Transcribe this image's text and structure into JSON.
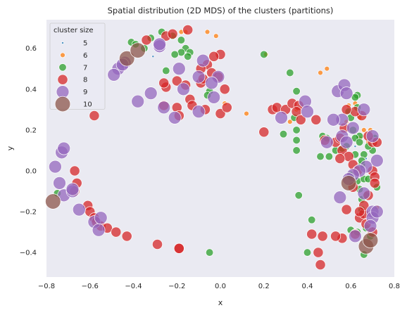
{
  "chart_data": {
    "type": "scatter",
    "title": "Spatial distribution (2D MDS) of the clusters (partitions)",
    "xlabel": "x",
    "ylabel": "y",
    "xlim": [
      -0.8,
      0.8
    ],
    "ylim": [
      -0.52,
      0.74
    ],
    "grid": false,
    "xticks": [
      "−0.8",
      "−0.6",
      "−0.4",
      "−0.2",
      "0.0",
      "0.2",
      "0.4",
      "0.6",
      "0.8"
    ],
    "xtick_values": [
      -0.8,
      -0.6,
      -0.4,
      -0.2,
      0.0,
      0.2,
      0.4,
      0.6,
      0.8
    ],
    "yticks": [
      "−0.4",
      "−0.2",
      "0.0",
      "0.2",
      "0.4",
      "0.6"
    ],
    "ytick_values": [
      -0.4,
      -0.2,
      0.0,
      0.2,
      0.4,
      0.6
    ],
    "legend": {
      "title": "cluster size",
      "placement": "top-left",
      "entries": [
        {
          "label": "5",
          "size": 5,
          "color": "#1f77b4"
        },
        {
          "label": "6",
          "size": 6,
          "color": "#ff7f0e"
        },
        {
          "label": "7",
          "size": 7,
          "color": "#2ca02c"
        },
        {
          "label": "8",
          "size": 8,
          "color": "#d62728"
        },
        {
          "label": "9",
          "size": 9,
          "color": "#9467bd"
        },
        {
          "label": "10",
          "size": 10,
          "color": "#8c564b"
        }
      ]
    },
    "series": [
      {
        "name": "5",
        "color": "#1f77b4",
        "points": [
          [
            -0.31,
            0.56
          ],
          [
            0.7,
            -0.28
          ],
          [
            0.62,
            0.12
          ],
          [
            0.67,
            0.06
          ]
        ]
      },
      {
        "name": "6",
        "color": "#ff7f0e",
        "points": [
          [
            -0.16,
            0.68
          ],
          [
            -0.18,
            0.68
          ],
          [
            -0.06,
            0.68
          ],
          [
            -0.02,
            0.66
          ],
          [
            0.21,
            0.57
          ],
          [
            0.46,
            0.48
          ],
          [
            0.49,
            0.5
          ],
          [
            0.12,
            0.28
          ],
          [
            0.35,
            0.3
          ],
          [
            0.32,
            0.24
          ],
          [
            0.59,
            0.32
          ],
          [
            0.62,
            0.33
          ],
          [
            0.64,
            0.26
          ],
          [
            0.66,
            0.2
          ],
          [
            0.69,
            0.2
          ],
          [
            0.58,
            0.24
          ],
          [
            0.02,
            0.33
          ],
          [
            0.72,
            -0.18
          ],
          [
            0.64,
            0.16
          ],
          [
            0.68,
            0.14
          ]
        ]
      },
      {
        "name": "7",
        "color": "#2ca02c",
        "points": [
          [
            -0.32,
            0.65
          ],
          [
            -0.27,
            0.68
          ],
          [
            -0.22,
            0.66
          ],
          [
            -0.18,
            0.64
          ],
          [
            -0.16,
            0.6
          ],
          [
            -0.18,
            0.58
          ],
          [
            -0.35,
            0.6
          ],
          [
            -0.41,
            0.63
          ],
          [
            -0.39,
            0.62
          ],
          [
            -0.25,
            0.49
          ],
          [
            -0.14,
            0.58
          ],
          [
            -0.15,
            0.56
          ],
          [
            -0.05,
            0.39
          ],
          [
            -0.06,
            0.37
          ],
          [
            -0.21,
            0.57
          ],
          [
            0.2,
            0.57
          ],
          [
            0.32,
            0.48
          ],
          [
            0.35,
            0.39
          ],
          [
            0.29,
            0.18
          ],
          [
            0.34,
            0.26
          ],
          [
            0.35,
            0.2
          ],
          [
            0.35,
            0.15
          ],
          [
            0.35,
            0.1
          ],
          [
            0.36,
            -0.12
          ],
          [
            0.42,
            -0.24
          ],
          [
            0.4,
            -0.4
          ],
          [
            -0.05,
            -0.4
          ],
          [
            0.46,
            0.07
          ],
          [
            0.5,
            0.07
          ],
          [
            0.53,
            0.1
          ],
          [
            0.56,
            0.11
          ],
          [
            0.58,
            0.12
          ],
          [
            0.59,
            0.29
          ],
          [
            0.63,
            0.37
          ],
          [
            0.63,
            0.31
          ],
          [
            0.61,
            0.2
          ],
          [
            0.64,
            0.17
          ],
          [
            0.62,
            0.08
          ],
          [
            0.6,
            -0.02
          ],
          [
            0.63,
            -0.05
          ],
          [
            0.64,
            -0.09
          ],
          [
            0.66,
            -0.04
          ],
          [
            0.68,
            -0.04
          ],
          [
            0.65,
            -0.14
          ],
          [
            0.67,
            -0.12
          ],
          [
            0.6,
            -0.29
          ],
          [
            0.63,
            -0.3
          ],
          [
            0.65,
            -0.19
          ],
          [
            0.67,
            -0.28
          ],
          [
            0.66,
            -0.41
          ],
          [
            0.69,
            -0.32
          ],
          [
            0.71,
            0.16
          ],
          [
            0.7,
            0.1
          ],
          [
            0.65,
            0.03
          ],
          [
            0.66,
            0.08
          ],
          [
            0.72,
            -0.08
          ],
          [
            -0.75,
            -0.11
          ],
          [
            0.47,
            0.17
          ],
          [
            0.62,
            0.16
          ],
          [
            0.64,
            0.14
          ],
          [
            0.68,
            0.12
          ],
          [
            0.6,
            0.26
          ],
          [
            0.62,
            0.36
          ],
          [
            0.65,
            0.05
          ],
          [
            0.49,
            0.16
          ]
        ]
      },
      {
        "name": "8",
        "color": "#d62728",
        "points": [
          [
            -0.34,
            0.64
          ],
          [
            -0.25,
            0.66
          ],
          [
            -0.22,
            0.67
          ],
          [
            -0.15,
            0.69
          ],
          [
            -0.25,
            0.41
          ],
          [
            -0.26,
            0.43
          ],
          [
            -0.2,
            0.44
          ],
          [
            -0.16,
            0.42
          ],
          [
            -0.14,
            0.35
          ],
          [
            -0.09,
            0.43
          ],
          [
            -0.08,
            0.45
          ],
          [
            -0.06,
            0.52
          ],
          [
            -0.04,
            0.48
          ],
          [
            -0.01,
            0.46
          ],
          [
            0.0,
            0.57
          ],
          [
            0.02,
            0.4
          ],
          [
            -0.03,
            0.56
          ],
          [
            -0.09,
            0.5
          ],
          [
            -0.2,
            0.31
          ],
          [
            -0.19,
            0.27
          ],
          [
            -0.26,
            0.32
          ],
          [
            -0.13,
            0.32
          ],
          [
            -0.07,
            0.3
          ],
          [
            0.0,
            0.28
          ],
          [
            0.03,
            0.31
          ],
          [
            0.2,
            0.19
          ],
          [
            0.24,
            0.3
          ],
          [
            0.26,
            0.31
          ],
          [
            0.3,
            0.3
          ],
          [
            0.33,
            0.33
          ],
          [
            0.36,
            0.32
          ],
          [
            0.35,
            0.29
          ],
          [
            0.37,
            0.25
          ],
          [
            0.44,
            0.25
          ],
          [
            0.48,
            0.15
          ],
          [
            0.53,
            0.14
          ],
          [
            0.57,
            0.21
          ],
          [
            0.55,
            0.16
          ],
          [
            0.56,
            0.1
          ],
          [
            0.59,
            0.07
          ],
          [
            0.55,
            0.06
          ],
          [
            0.58,
            -0.19
          ],
          [
            0.61,
            -0.08
          ],
          [
            0.61,
            0.03
          ],
          [
            0.63,
            0.0
          ],
          [
            0.64,
            -0.23
          ],
          [
            0.66,
            -0.21
          ],
          [
            0.68,
            -0.12
          ],
          [
            0.62,
            -0.31
          ],
          [
            0.67,
            -0.26
          ],
          [
            0.7,
            -0.3
          ],
          [
            0.7,
            0.0
          ],
          [
            0.71,
            -0.03
          ],
          [
            0.71,
            -0.06
          ],
          [
            0.7,
            0.14
          ],
          [
            0.65,
            0.27
          ],
          [
            0.62,
            0.29
          ],
          [
            0.58,
            0.3
          ],
          [
            0.47,
            -0.32
          ],
          [
            0.45,
            -0.4
          ],
          [
            0.46,
            -0.46
          ],
          [
            0.56,
            -0.33
          ],
          [
            0.53,
            -0.32
          ],
          [
            0.42,
            -0.31
          ],
          [
            -0.58,
            0.27
          ],
          [
            -0.67,
            0.0
          ],
          [
            -0.66,
            -0.06
          ],
          [
            -0.67,
            -0.1
          ],
          [
            -0.61,
            -0.17
          ],
          [
            -0.6,
            -0.2
          ],
          [
            -0.58,
            -0.23
          ],
          [
            -0.57,
            -0.25
          ],
          [
            -0.55,
            -0.27
          ],
          [
            -0.52,
            -0.28
          ],
          [
            -0.48,
            -0.3
          ],
          [
            -0.43,
            -0.32
          ],
          [
            -0.29,
            -0.36
          ],
          [
            -0.19,
            -0.38
          ],
          [
            -0.19,
            -0.38
          ],
          [
            0.68,
            0.17
          ],
          [
            0.72,
            0.14
          ],
          [
            0.66,
            -0.17
          ],
          [
            0.64,
            -0.2
          ]
        ]
      },
      {
        "name": "9",
        "color": "#9467bd",
        "points": [
          [
            -0.44,
            0.53
          ],
          [
            -0.47,
            0.5
          ],
          [
            -0.45,
            0.52
          ],
          [
            -0.49,
            0.47
          ],
          [
            -0.28,
            0.61
          ],
          [
            -0.28,
            0.62
          ],
          [
            -0.19,
            0.5
          ],
          [
            -0.08,
            0.54
          ],
          [
            -0.01,
            0.46
          ],
          [
            -0.17,
            0.4
          ],
          [
            -0.1,
            0.46
          ],
          [
            -0.04,
            0.43
          ],
          [
            -0.32,
            0.38
          ],
          [
            -0.26,
            0.31
          ],
          [
            -0.21,
            0.26
          ],
          [
            -0.1,
            0.29
          ],
          [
            -0.03,
            0.36
          ],
          [
            0.28,
            0.26
          ],
          [
            0.39,
            0.34
          ],
          [
            0.4,
            0.29
          ],
          [
            0.54,
            0.39
          ],
          [
            0.57,
            0.42
          ],
          [
            0.58,
            0.38
          ],
          [
            0.56,
            0.25
          ],
          [
            0.52,
            0.25
          ],
          [
            0.49,
            0.14
          ],
          [
            0.56,
            0.17
          ],
          [
            0.58,
            0.14
          ],
          [
            0.61,
            0.21
          ],
          [
            0.66,
            0.3
          ],
          [
            0.7,
            0.17
          ],
          [
            0.72,
            0.05
          ],
          [
            0.67,
            0.02
          ],
          [
            0.64,
            0.0
          ],
          [
            0.61,
            -0.02
          ],
          [
            0.59,
            -0.04
          ],
          [
            0.66,
            -0.11
          ],
          [
            0.7,
            -0.2
          ],
          [
            0.7,
            -0.23
          ],
          [
            0.72,
            -0.2
          ],
          [
            0.69,
            -0.27
          ],
          [
            0.55,
            -0.13
          ],
          [
            -0.76,
            0.02
          ],
          [
            -0.73,
            0.09
          ],
          [
            -0.72,
            0.11
          ],
          [
            -0.74,
            -0.06
          ],
          [
            -0.72,
            -0.12
          ],
          [
            -0.68,
            -0.1
          ],
          [
            -0.68,
            -0.09
          ],
          [
            -0.65,
            -0.19
          ],
          [
            -0.58,
            -0.25
          ],
          [
            -0.56,
            -0.29
          ],
          [
            -0.55,
            -0.23
          ],
          [
            -0.38,
            0.34
          ],
          [
            0.62,
            -0.32
          ]
        ]
      },
      {
        "name": "10",
        "color": "#8c564b",
        "points": [
          [
            -0.43,
            0.55
          ],
          [
            -0.38,
            0.59
          ],
          [
            -0.77,
            -0.15
          ],
          [
            0.59,
            -0.06
          ],
          [
            0.67,
            -0.37
          ],
          [
            0.69,
            -0.34
          ]
        ]
      }
    ]
  }
}
